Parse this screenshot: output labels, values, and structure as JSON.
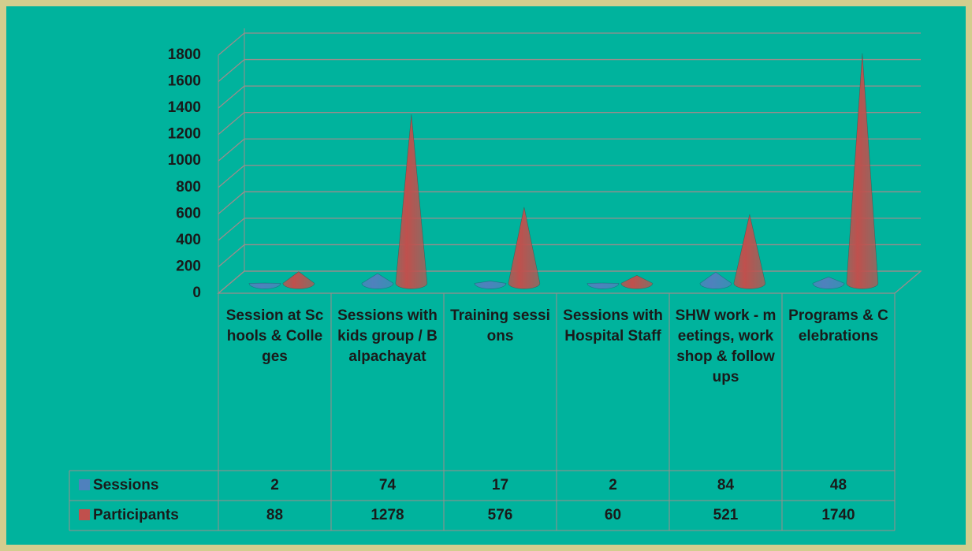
{
  "chart_data": {
    "type": "cone3d",
    "categories": [
      "Session at Schools & Colleges",
      "Sessions with kids group / Balpachayat",
      "Training sessions",
      "Sessions with Hospital Staff",
      "SHW work - meetings, workshop & followups",
      "Programs & Celebrations"
    ],
    "series": [
      {
        "name": "Sessions",
        "color": "#4f81bd",
        "values": [
          2,
          74,
          17,
          2,
          84,
          48
        ]
      },
      {
        "name": "Participants",
        "color": "#c0504d",
        "values": [
          88,
          1278,
          576,
          60,
          521,
          1740
        ]
      }
    ],
    "ylim": [
      0,
      1800
    ],
    "yticks": [
      0,
      200,
      400,
      600,
      800,
      1000,
      1200,
      1400,
      1600,
      1800
    ],
    "grid": true,
    "data_table": true
  }
}
